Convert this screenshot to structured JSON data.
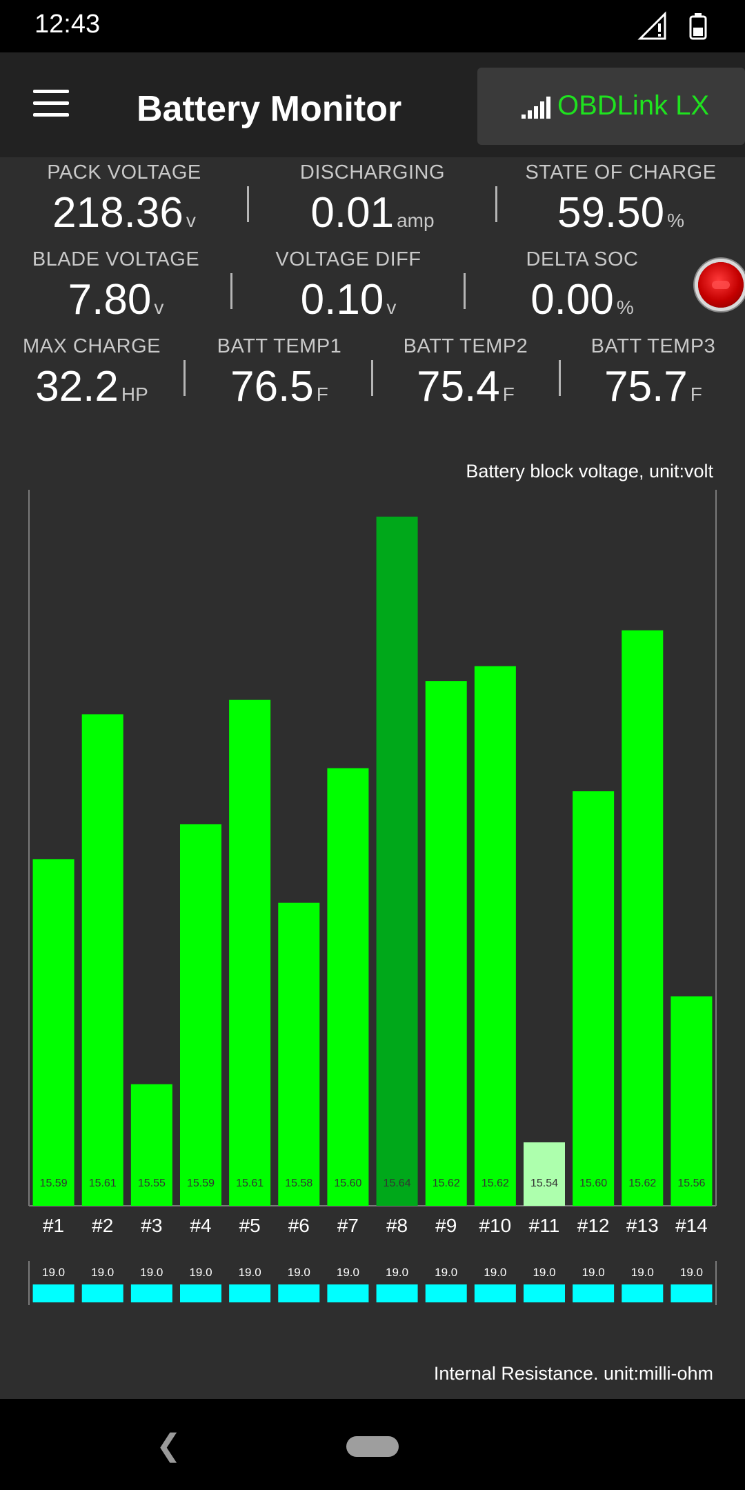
{
  "status_bar": {
    "time": "12:43"
  },
  "app_bar": {
    "title": "Battery Monitor",
    "adapter_label": "OBDLink LX"
  },
  "metrics": {
    "pack_voltage": {
      "label": "PACK VOLTAGE",
      "value": "218.36",
      "unit": "v"
    },
    "discharging": {
      "label": "DISCHARGING",
      "value": "0.01",
      "unit": "amp"
    },
    "state_of_charge": {
      "label": "STATE OF CHARGE",
      "value": "59.50",
      "unit": "%"
    },
    "blade_voltage": {
      "label": "BLADE VOLTAGE",
      "value": "7.80",
      "unit": "v"
    },
    "voltage_diff": {
      "label": "VOLTAGE DIFF",
      "value": "0.10",
      "unit": "v"
    },
    "delta_soc": {
      "label": "DELTA SOC",
      "value": "0.00",
      "unit": "%"
    },
    "max_charge": {
      "label": "MAX CHARGE",
      "value": "32.2",
      "unit": "HP"
    },
    "batt_temp1": {
      "label": "BATT TEMP1",
      "value": "76.5",
      "unit": "F"
    },
    "batt_temp2": {
      "label": "BATT TEMP2",
      "value": "75.4",
      "unit": "F"
    },
    "batt_temp3": {
      "label": "BATT TEMP3",
      "value": "75.7",
      "unit": "F"
    }
  },
  "colors": {
    "bar_normal": "#00ff00",
    "bar_max": "#00a81a",
    "bar_min": "#adffad",
    "resistance_bar": "#00ffff",
    "adapter_text": "#1fe21f"
  },
  "chart_data": [
    {
      "type": "bar",
      "title": "Battery block voltage, unit:volt",
      "categories": [
        "#1",
        "#2",
        "#3",
        "#4",
        "#5",
        "#6",
        "#7",
        "#8",
        "#9",
        "#10",
        "#11",
        "#12",
        "#13",
        "#14"
      ],
      "values": [
        15.59,
        15.61,
        15.55,
        15.59,
        15.61,
        15.58,
        15.6,
        15.64,
        15.62,
        15.62,
        15.54,
        15.6,
        15.62,
        15.56
      ],
      "value_labels": [
        "15.59",
        "15.61",
        "15.55",
        "15.59",
        "15.61",
        "15.58",
        "15.60",
        "15.64",
        "15.62",
        "15.62",
        "15.54",
        "15.60",
        "15.62",
        "15.56"
      ],
      "bar_heights_rel": [
        0.4842,
        0.6865,
        0.1698,
        0.5328,
        0.7065,
        0.4232,
        0.6112,
        0.9625,
        0.733,
        0.7536,
        0.0886,
        0.5789,
        0.8037,
        0.2925
      ],
      "highlight": {
        "max_index": 7,
        "min_index": 10
      }
    },
    {
      "type": "bar",
      "title": "Internal Resistance. unit:milli-ohm",
      "categories": [
        "#1",
        "#2",
        "#3",
        "#4",
        "#5",
        "#6",
        "#7",
        "#8",
        "#9",
        "#10",
        "#11",
        "#12",
        "#13",
        "#14"
      ],
      "values": [
        19.0,
        19.0,
        19.0,
        19.0,
        19.0,
        19.0,
        19.0,
        19.0,
        19.0,
        19.0,
        19.0,
        19.0,
        19.0,
        19.0
      ],
      "value_labels": [
        "19.0",
        "19.0",
        "19.0",
        "19.0",
        "19.0",
        "19.0",
        "19.0",
        "19.0",
        "19.0",
        "19.0",
        "19.0",
        "19.0",
        "19.0",
        "19.0"
      ]
    }
  ]
}
